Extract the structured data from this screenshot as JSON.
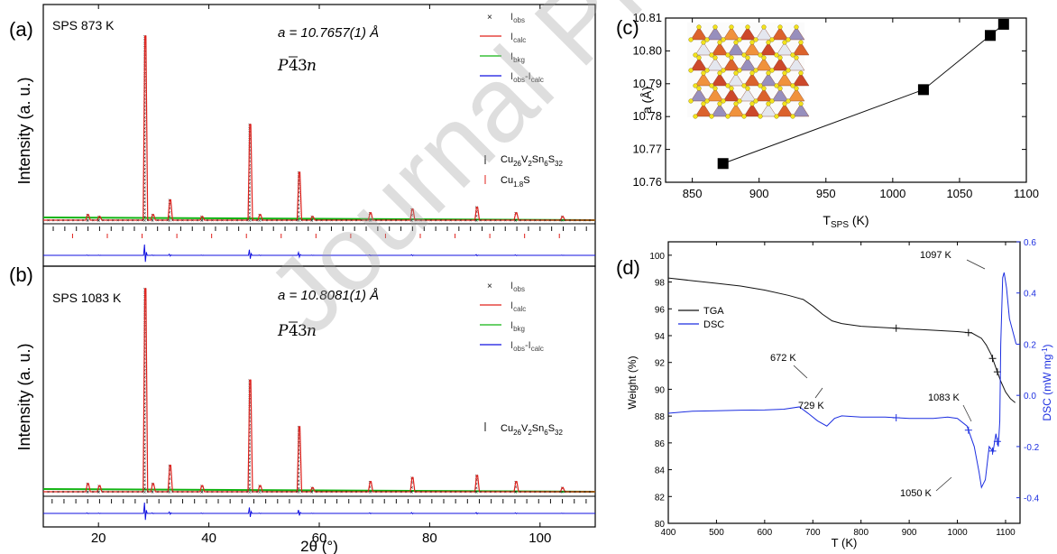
{
  "watermark": "Journal Pre-proof",
  "colors": {
    "obs": "#111111",
    "calc": "#e0201b",
    "bkg": "#12b312",
    "diff": "#1010e0",
    "tga": "#111111",
    "dsc": "#1c2ee0"
  },
  "panel_ab": {
    "x_label": "2θ (°)",
    "y_label": "Intensity (a. u.)",
    "x_ticks": [
      "20",
      "40",
      "60",
      "80",
      "100"
    ],
    "xlim": [
      10,
      110
    ],
    "legend": [
      "I_obs",
      "I_calc",
      "I_bkg",
      "I_obs-I_calc"
    ],
    "panels": [
      {
        "letter": "(a)",
        "sample": "SPS 873 K",
        "lattice": "a = 10.7657(1) Å",
        "space_group": "P-43n",
        "phases": [
          "Cu26V2Sn6S32",
          "Cu1.8S"
        ],
        "peaks": [
          {
            "x": 28.5,
            "y": 1.0
          },
          {
            "x": 33.0,
            "y": 0.11
          },
          {
            "x": 47.5,
            "y": 0.52
          },
          {
            "x": 56.4,
            "y": 0.26
          },
          {
            "x": 76.9,
            "y": 0.06
          },
          {
            "x": 88.6,
            "y": 0.07
          },
          {
            "x": 95.7,
            "y": 0.04
          },
          {
            "x": 18.1,
            "y": 0.03
          },
          {
            "x": 20.2,
            "y": 0.02
          },
          {
            "x": 29.9,
            "y": 0.03
          },
          {
            "x": 38.8,
            "y": 0.02
          },
          {
            "x": 49.3,
            "y": 0.03
          },
          {
            "x": 58.8,
            "y": 0.02
          },
          {
            "x": 69.3,
            "y": 0.04
          },
          {
            "x": 104.1,
            "y": 0.02
          }
        ]
      },
      {
        "letter": "(b)",
        "sample": "SPS 1083 K",
        "lattice": "a = 10.8081(1) Å",
        "space_group": "P-43n",
        "phases": [
          "Cu26V2Sn6S32"
        ],
        "peaks": [
          {
            "x": 28.5,
            "y": 1.0
          },
          {
            "x": 33.0,
            "y": 0.13
          },
          {
            "x": 47.5,
            "y": 0.55
          },
          {
            "x": 56.4,
            "y": 0.32
          },
          {
            "x": 76.9,
            "y": 0.07
          },
          {
            "x": 88.6,
            "y": 0.08
          },
          {
            "x": 95.7,
            "y": 0.05
          },
          {
            "x": 18.1,
            "y": 0.04
          },
          {
            "x": 20.2,
            "y": 0.03
          },
          {
            "x": 29.9,
            "y": 0.04
          },
          {
            "x": 38.8,
            "y": 0.03
          },
          {
            "x": 49.3,
            "y": 0.03
          },
          {
            "x": 58.8,
            "y": 0.02
          },
          {
            "x": 69.3,
            "y": 0.05
          },
          {
            "x": 104.1,
            "y": 0.02
          }
        ]
      }
    ]
  },
  "chart_data": [
    {
      "type": "scatter",
      "panel": "(c)",
      "xlabel": "T_SPS (K)",
      "ylabel": "a (Å)",
      "xlim": [
        830,
        1100
      ],
      "ylim": [
        10.76,
        10.81
      ],
      "x_ticks": [
        850,
        900,
        950,
        1000,
        1050,
        1100
      ],
      "y_ticks": [
        10.76,
        10.77,
        10.78,
        10.79,
        10.8,
        10.81
      ],
      "x": [
        873,
        1023,
        1073,
        1083
      ],
      "y": [
        10.7657,
        10.7882,
        10.8047,
        10.8081
      ]
    },
    {
      "type": "line",
      "panel": "(d)",
      "xlabel": "T (K)",
      "ylabel": "Weight (%)",
      "y2label": "DSC (mW mg⁻¹)",
      "xlim": [
        400,
        1130
      ],
      "ylim": [
        80,
        101
      ],
      "y2lim": [
        -0.5,
        0.6
      ],
      "x_ticks": [
        400,
        500,
        600,
        700,
        800,
        900,
        1000,
        1100
      ],
      "y_ticks": [
        80,
        82,
        84,
        86,
        88,
        90,
        92,
        94,
        96,
        98,
        100
      ],
      "y2_ticks": [
        "-0.4",
        "-0.2",
        "0.0",
        "0.2",
        "0.4",
        "0.6"
      ],
      "legend": "top-left",
      "series": [
        {
          "name": "TGA",
          "axis": "left",
          "x": [
            400,
            450,
            500,
            550,
            600,
            650,
            680,
            700,
            720,
            740,
            760,
            780,
            800,
            850,
            900,
            950,
            1000,
            1030,
            1050,
            1060,
            1070,
            1080,
            1090,
            1100,
            1110,
            1120
          ],
          "y": [
            98.3,
            98.1,
            97.9,
            97.7,
            97.4,
            97.0,
            96.7,
            96.2,
            95.6,
            95.1,
            94.9,
            94.8,
            94.7,
            94.6,
            94.5,
            94.4,
            94.3,
            94.2,
            93.8,
            93.3,
            92.6,
            91.6,
            90.6,
            89.8,
            89.3,
            89.0
          ],
          "markers_x": [
            873,
            1023,
            1073,
            1083
          ]
        },
        {
          "name": "DSC",
          "axis": "right",
          "x": [
            400,
            450,
            500,
            550,
            600,
            640,
            672,
            690,
            710,
            729,
            745,
            760,
            800,
            850,
            900,
            950,
            980,
            1000,
            1020,
            1035,
            1045,
            1050,
            1058,
            1066,
            1074,
            1080,
            1085,
            1088,
            1090,
            1094,
            1097,
            1102,
            1108,
            1115,
            1122
          ],
          "y": [
            -0.07,
            -0.062,
            -0.06,
            -0.058,
            -0.057,
            -0.054,
            -0.045,
            -0.07,
            -0.1,
            -0.12,
            -0.09,
            -0.08,
            -0.085,
            -0.085,
            -0.09,
            -0.09,
            -0.085,
            -0.09,
            -0.12,
            -0.2,
            -0.3,
            -0.36,
            -0.33,
            -0.2,
            -0.22,
            -0.15,
            -0.2,
            -0.1,
            0.2,
            0.46,
            0.48,
            0.42,
            0.3,
            0.25,
            0.2
          ],
          "markers_x": [
            873,
            1023,
            1073,
            1083
          ]
        }
      ],
      "annotations": [
        "1097 K",
        "672 K",
        "729 K",
        "1083 K",
        "1050 K"
      ]
    }
  ]
}
